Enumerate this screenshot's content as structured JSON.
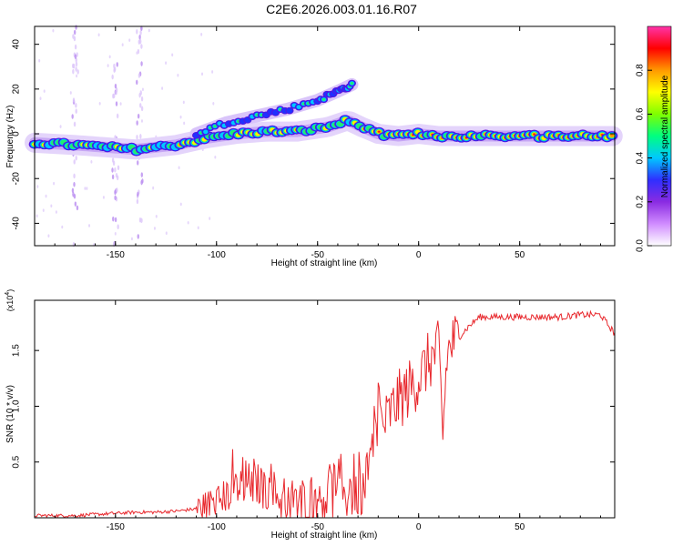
{
  "page": {
    "title": "C2E6.2026.003.01.16.R07"
  },
  "chart_data": [
    {
      "type": "heatmap",
      "title": "C2E6.2026.003.01.16.R07",
      "xlabel": "Height of straight line (km)",
      "ylabel": "Frequency (Hz)",
      "xlim": [
        -190,
        97
      ],
      "ylim": [
        -50,
        48
      ],
      "xticks": [
        -150,
        -100,
        -50,
        0,
        50
      ],
      "yticks": [
        -40,
        -20,
        0,
        20,
        40
      ],
      "main_trace": [
        {
          "x": -190,
          "y": -4
        },
        {
          "x": -170,
          "y": -5
        },
        {
          "x": -155,
          "y": -6
        },
        {
          "x": -140,
          "y": -7
        },
        {
          "x": -120,
          "y": -5
        },
        {
          "x": -105,
          "y": -2
        },
        {
          "x": -90,
          "y": 0
        },
        {
          "x": -75,
          "y": 1
        },
        {
          "x": -60,
          "y": 1
        },
        {
          "x": -45,
          "y": 3
        },
        {
          "x": -35,
          "y": 6
        },
        {
          "x": -28,
          "y": 3
        },
        {
          "x": -20,
          "y": 0
        },
        {
          "x": -10,
          "y": -1
        },
        {
          "x": 0,
          "y": 0
        },
        {
          "x": 10,
          "y": -1
        },
        {
          "x": 30,
          "y": -1
        },
        {
          "x": 60,
          "y": -1
        },
        {
          "x": 97,
          "y": -1
        }
      ],
      "upper_branch": [
        {
          "x": -110,
          "y": 0
        },
        {
          "x": -95,
          "y": 5
        },
        {
          "x": -80,
          "y": 8
        },
        {
          "x": -65,
          "y": 11
        },
        {
          "x": -50,
          "y": 15
        },
        {
          "x": -40,
          "y": 19
        },
        {
          "x": -33,
          "y": 22
        }
      ],
      "colorbar": {
        "label": "Normalized spectral amplitude",
        "range": [
          0,
          1
        ],
        "ticks": [
          0.0,
          0.2,
          0.4,
          0.6,
          0.8
        ],
        "colors": [
          "#ffffff",
          "#d08cff",
          "#8a2be2",
          "#2f2fff",
          "#00c8ff",
          "#00ff80",
          "#7fff00",
          "#ffff00",
          "#ff9900",
          "#ff0000",
          "#ff33aa"
        ]
      }
    },
    {
      "type": "line",
      "xlabel": "Height of straight line (km)",
      "ylabel": "SNR (10 * v/v)",
      "exponent_label": "(x10",
      "exponent_power": "4",
      "exponent_close": ")",
      "xlim": [
        -190,
        97
      ],
      "ylim": [
        0,
        1.95
      ],
      "xticks": [
        -150,
        -100,
        -50,
        0,
        50
      ],
      "yticks": [
        0.5,
        1.0,
        1.5
      ],
      "ytick_labels": [
        "0.5",
        "1.0",
        "1.5"
      ],
      "color": "#e8282d",
      "series": [
        {
          "name": "SNR",
          "x": [
            -190,
            -170,
            -160,
            -150,
            -140,
            -130,
            -120,
            -110,
            -100,
            -95,
            -90,
            -85,
            -80,
            -75,
            -70,
            -65,
            -60,
            -55,
            -50,
            -45,
            -40,
            -35,
            -30,
            -25,
            -22,
            -20,
            -18,
            -15,
            -12,
            -10,
            -5,
            0,
            5,
            10,
            12,
            14,
            16,
            20,
            25,
            30,
            40,
            50,
            60,
            70,
            80,
            90,
            97
          ],
          "y": [
            0.02,
            0.02,
            0.03,
            0.04,
            0.05,
            0.05,
            0.06,
            0.08,
            0.15,
            0.2,
            0.26,
            0.32,
            0.3,
            0.26,
            0.2,
            0.15,
            0.12,
            0.14,
            0.18,
            0.22,
            0.24,
            0.26,
            0.3,
            0.35,
            0.6,
            1.1,
            0.8,
            0.9,
            1.0,
            1.05,
            1.15,
            1.25,
            1.4,
            1.5,
            0.75,
            1.45,
            1.55,
            1.62,
            1.72,
            1.8,
            1.8,
            1.8,
            1.8,
            1.8,
            1.82,
            1.82,
            1.65
          ]
        }
      ]
    }
  ]
}
